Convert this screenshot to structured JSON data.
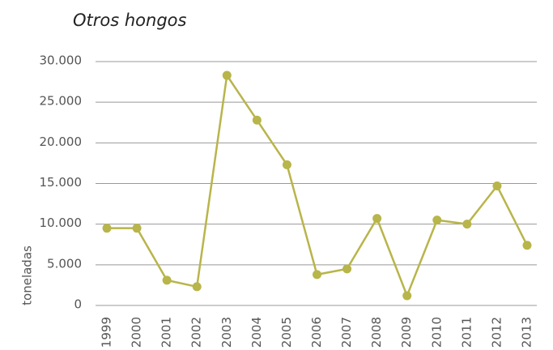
{
  "chart_data": {
    "type": "line",
    "title": "Otros hongos",
    "y_label": "toneladas",
    "categories": [
      "1999",
      "2000",
      "2001",
      "2002",
      "2003",
      "2004",
      "2005",
      "2006",
      "2007",
      "2008",
      "2009",
      "2010",
      "2011",
      "2012",
      "2013"
    ],
    "series": [
      {
        "name": "Otros hongos",
        "color": "#b8b54a",
        "values": [
          9500,
          9500,
          3100,
          2300,
          28300,
          22800,
          17300,
          3800,
          4500,
          10700,
          1200,
          10500,
          10000,
          14700,
          7400
        ]
      }
    ],
    "ylim": [
      0,
      30000
    ],
    "yticks": [
      0,
      {
        "value": 5000,
        "label": "5.000"
      },
      {
        "value": 10000,
        "label": "10.000"
      },
      {
        "value": 15000,
        "label": "15.000"
      },
      {
        "value": 20000,
        "label": "20.000"
      },
      {
        "value": 25000,
        "label": "25.000"
      },
      {
        "value": 30000,
        "label": "30.000"
      }
    ],
    "grid": true
  }
}
